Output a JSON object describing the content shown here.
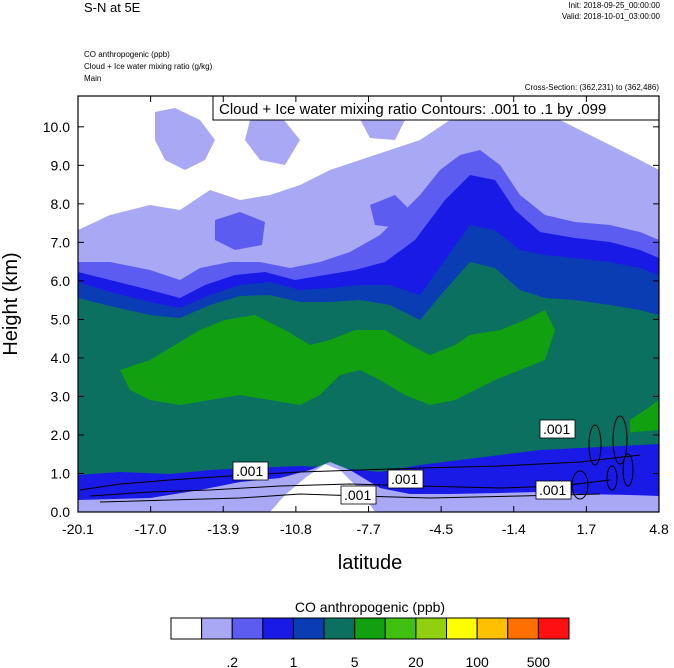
{
  "header": {
    "title": "S-N at 5E",
    "init": "Init: 2018-09-25_00:00:00",
    "valid": "Valid: 2018-10-01_03:00:00",
    "field1": "CO anthropogenic   (ppb)",
    "field2": "Cloud + Ice water mixing ratio   (g/kg)",
    "domain": "Main",
    "cross_section": "Cross-Section: (362,231) to (362,486)"
  },
  "colorbar": {
    "title": "CO anthropogenic  (ppb)",
    "colors": [
      "#ffffff",
      "#a8a8f5",
      "#5c5cf0",
      "#1a1ae6",
      "#0a3cb4",
      "#0b7060",
      "#10a010",
      "#40c010",
      "#90d010",
      "#ffff00",
      "#ffc000",
      "#ff7000",
      "#ff1010"
    ],
    "labels": [
      ".2",
      "1",
      "5",
      "20",
      "100",
      "500"
    ]
  },
  "chart_data": {
    "type": "heatmap",
    "title": "Cloud + Ice water mixing ratio Contours: .001 to .1 by .099",
    "xlabel": "latitude",
    "ylabel": "Height (km)",
    "xlim": [
      -20.1,
      4.8
    ],
    "ylim": [
      0.0,
      10.8
    ],
    "x_ticks": [
      "-20.1",
      "-17.0",
      "-13.9",
      "-10.8",
      "-7.7",
      "-4.5",
      "-1.4",
      "1.7",
      "4.8"
    ],
    "y_ticks": [
      "0.0",
      "1.0",
      "2.0",
      "3.0",
      "4.0",
      "5.0",
      "6.0",
      "7.0",
      "8.0",
      "9.0",
      "10.0"
    ],
    "contour_labels": [
      ".001",
      ".001",
      ".001",
      ".001",
      ".001"
    ],
    "legend": "colorbar-bottom"
  }
}
